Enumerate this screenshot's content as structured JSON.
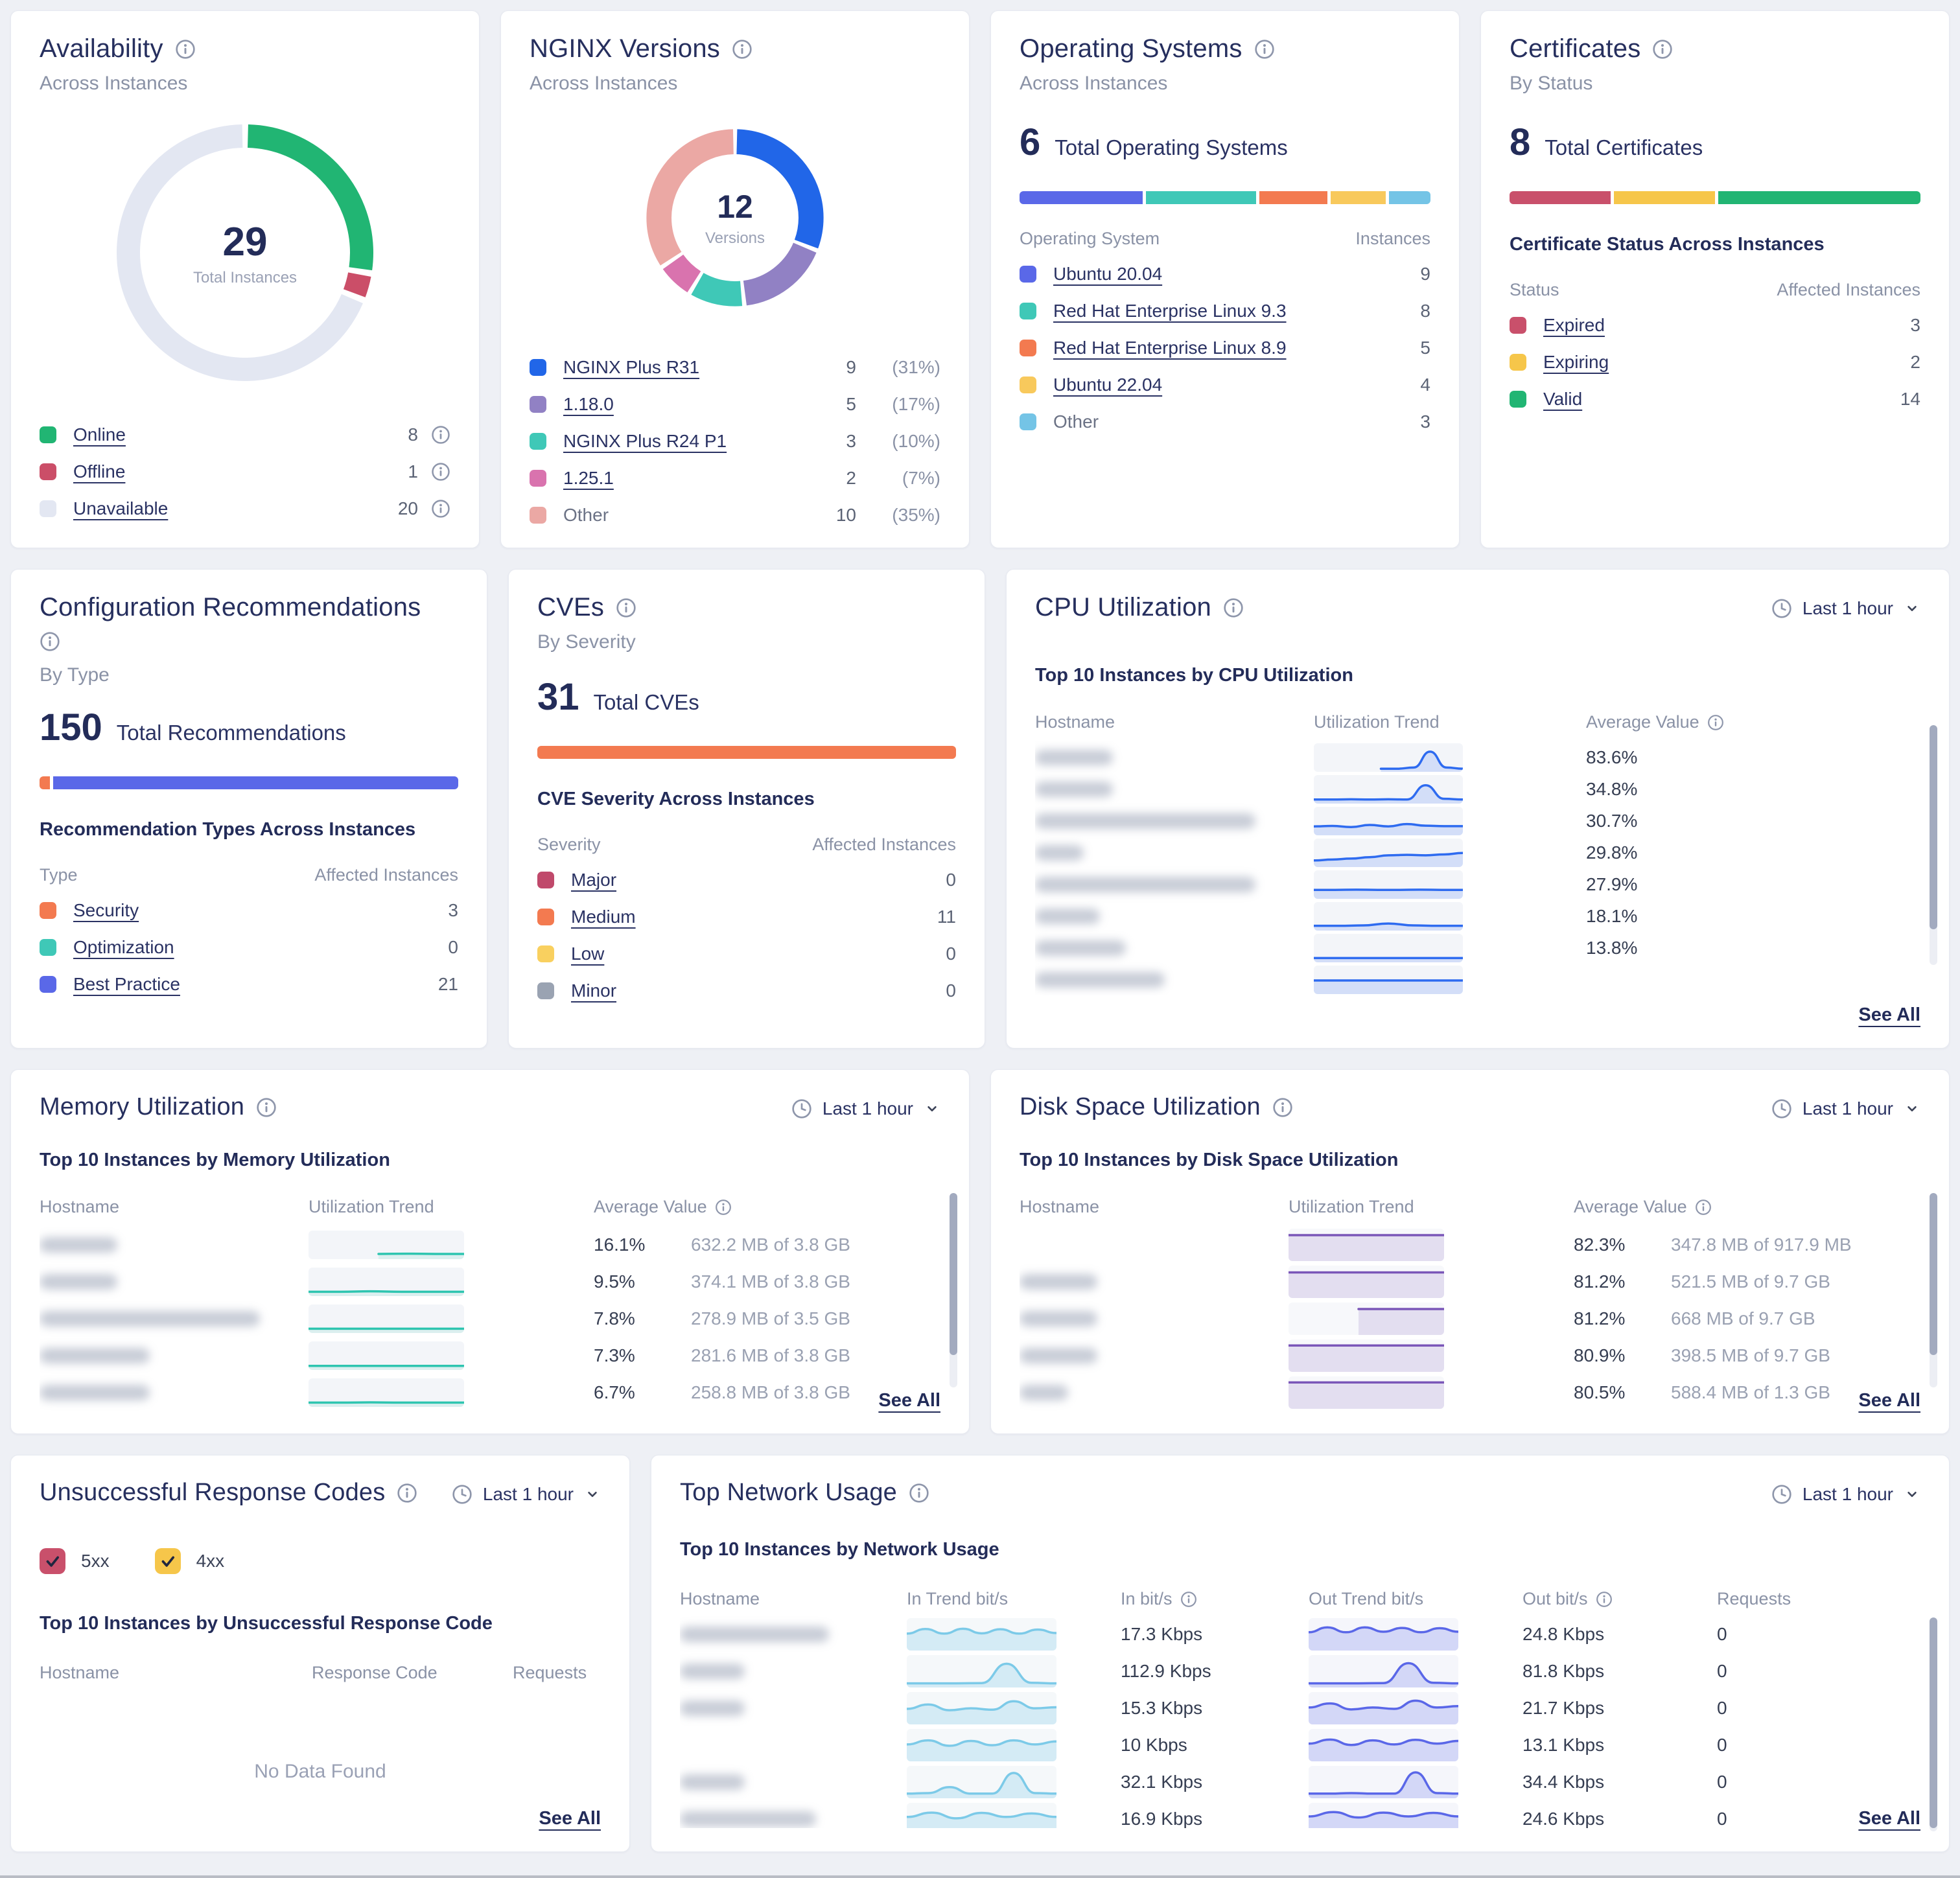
{
  "ui": {
    "see_all": "See All",
    "time_range": "Last 1 hour",
    "empty": "No Data Found"
  },
  "chart_data": [
    {
      "type": "pie",
      "title": "Availability Across Instances",
      "center_value": "29",
      "center_label": "Total Instances",
      "categories": [
        "Online",
        "Offline",
        "Unavailable"
      ],
      "values": [
        8,
        1,
        20
      ],
      "colors": [
        "#21b573",
        "#cb4e68",
        "#e3e7f2"
      ]
    },
    {
      "type": "pie",
      "title": "NGINX Versions Across Instances",
      "center_value": "12",
      "center_label": "Versions",
      "categories": [
        "NGINX Plus R31",
        "1.18.0",
        "NGINX Plus R24 P1",
        "1.25.1",
        "Other"
      ],
      "values": [
        9,
        5,
        3,
        2,
        10
      ],
      "colors": [
        "#2166e8",
        "#9181c4",
        "#3fc8b7",
        "#d973ae",
        "#eba8a4"
      ]
    },
    {
      "type": "bar",
      "title": "Operating Systems",
      "categories": [
        "Ubuntu 20.04",
        "Red Hat Enterprise Linux 9.3",
        "Red Hat Enterprise Linux 8.9",
        "Ubuntu 22.04",
        "Other"
      ],
      "values": [
        9,
        8,
        5,
        4,
        3
      ]
    },
    {
      "type": "bar",
      "title": "Certificates By Status",
      "categories": [
        "Expired",
        "Expiring",
        "Valid"
      ],
      "values": [
        3,
        2,
        14
      ]
    },
    {
      "type": "bar",
      "title": "Configuration Recommendations By Type",
      "categories": [
        "Security",
        "Optimization",
        "Best Practice"
      ],
      "values": [
        3,
        0,
        21
      ]
    },
    {
      "type": "bar",
      "title": "CVEs By Severity",
      "categories": [
        "Major",
        "Medium",
        "Low",
        "Minor"
      ],
      "values": [
        0,
        11,
        0,
        0
      ]
    }
  ],
  "availability": {
    "title": "Availability",
    "subtitle": "Across Instances",
    "center": {
      "value": "29",
      "label": "Total Instances"
    },
    "segments": [
      {
        "label": "Online",
        "count": "8",
        "value": 8,
        "color": "#21b573",
        "link": true
      },
      {
        "label": "Offline",
        "count": "1",
        "value": 1,
        "color": "#cb4e68",
        "link": true
      },
      {
        "label": "Unavailable",
        "count": "20",
        "value": 20,
        "color": "#e3e7f2",
        "link": true
      }
    ]
  },
  "nginx": {
    "title": "NGINX Versions",
    "subtitle": "Across Instances",
    "center": {
      "value": "12",
      "label": "Versions"
    },
    "segments": [
      {
        "label": "NGINX Plus R31",
        "count": "9",
        "pct": "(31%)",
        "value": 9,
        "color": "#2166e8",
        "link": true
      },
      {
        "label": "1.18.0",
        "count": "5",
        "pct": "(17%)",
        "value": 5,
        "color": "#9181c4",
        "link": true
      },
      {
        "label": "NGINX Plus R24 P1",
        "count": "3",
        "pct": "(10%)",
        "value": 3,
        "color": "#3fc8b7",
        "link": true
      },
      {
        "label": "1.25.1",
        "count": "2",
        "pct": "(7%)",
        "value": 2,
        "color": "#d973ae",
        "link": true
      },
      {
        "label": "Other",
        "count": "10",
        "pct": "(35%)",
        "value": 10,
        "color": "#eba8a4",
        "link": false
      }
    ]
  },
  "os": {
    "title": "Operating Systems",
    "subtitle": "Across Instances",
    "total": "6",
    "total_label": "Total Operating Systems",
    "bar": [
      {
        "pct": 31,
        "color": "#5a68e8"
      },
      {
        "pct": 27.6,
        "color": "#3fc8b7"
      },
      {
        "pct": 17.2,
        "color": "#f37a50"
      },
      {
        "pct": 13.8,
        "color": "#f8c95c"
      },
      {
        "pct": 10.4,
        "color": "#74c4e6"
      }
    ],
    "headers": [
      "Operating System",
      "Instances"
    ],
    "rows": [
      {
        "label": "Ubuntu 20.04",
        "count": "9",
        "color": "#5a68e8",
        "link": true
      },
      {
        "label": "Red Hat Enterprise Linux 9.3",
        "count": "8",
        "color": "#3fc8b7",
        "link": true
      },
      {
        "label": "Red Hat Enterprise Linux 8.9",
        "count": "5",
        "color": "#f37a50",
        "link": true
      },
      {
        "label": "Ubuntu 22.04",
        "count": "4",
        "color": "#f8c95c",
        "link": true
      },
      {
        "label": "Other",
        "count": "3",
        "color": "#74c4e6",
        "link": false
      }
    ]
  },
  "certs": {
    "title": "Certificates",
    "subtitle": "By Status",
    "total": "8",
    "total_label": "Total Certificates",
    "bar": [
      {
        "pct": 25,
        "color": "#c9506b"
      },
      {
        "pct": 25,
        "color": "#f6c64a"
      },
      {
        "pct": 50,
        "color": "#21b573"
      }
    ],
    "section": "Certificate Status Across Instances",
    "headers": [
      "Status",
      "Affected Instances"
    ],
    "rows": [
      {
        "label": "Expired",
        "count": "3",
        "color": "#c9506b",
        "link": true
      },
      {
        "label": "Expiring",
        "count": "2",
        "color": "#f6c64a",
        "link": true
      },
      {
        "label": "Valid",
        "count": "14",
        "color": "#21b573",
        "link": true
      }
    ]
  },
  "config": {
    "title": "Configuration Recommendations",
    "subtitle": "By Type",
    "total": "150",
    "total_label": "Total Recommendations",
    "bar": [
      {
        "pct": 2.5,
        "color": "#f37a50"
      },
      {
        "pct": 97.5,
        "color": "#5a68e8"
      }
    ],
    "section": "Recommendation Types Across Instances",
    "headers": [
      "Type",
      "Affected Instances"
    ],
    "rows": [
      {
        "label": "Security",
        "count": "3",
        "color": "#f37a50",
        "link": true
      },
      {
        "label": "Optimization",
        "count": "0",
        "color": "#3fc8b7",
        "link": true
      },
      {
        "label": "Best Practice",
        "count": "21",
        "color": "#5a68e8",
        "link": true
      }
    ]
  },
  "cves": {
    "title": "CVEs",
    "subtitle": "By Severity",
    "total": "31",
    "total_label": "Total CVEs",
    "bar": [
      {
        "pct": 100,
        "color": "#f37a50"
      }
    ],
    "section": "CVE Severity Across Instances",
    "headers": [
      "Severity",
      "Affected Instances"
    ],
    "rows": [
      {
        "label": "Major",
        "count": "0",
        "color": "#c0496b",
        "link": true
      },
      {
        "label": "Medium",
        "count": "11",
        "color": "#f37a50",
        "link": true
      },
      {
        "label": "Low",
        "count": "0",
        "color": "#f9d05f",
        "link": true
      },
      {
        "label": "Minor",
        "count": "0",
        "color": "#9aa3b2",
        "link": true
      }
    ]
  },
  "cpu": {
    "title": "CPU Utilization",
    "section": "Top 10 Instances by CPU Utilization",
    "headers": {
      "host": "Hostname",
      "trend": "Utilization Trend",
      "value": "Average Value"
    },
    "rows": [
      {
        "host_w": 120,
        "value": "83.6%",
        "trend": {
          "start": 0.45,
          "v": [
            0.05,
            0.05,
            0.1,
            0.78,
            0.1,
            0.05
          ]
        }
      },
      {
        "host_w": 120,
        "value": "34.8%",
        "trend": {
          "v": [
            0.09,
            0.09,
            0.1,
            0.09,
            0.1,
            0.09,
            0.7,
            0.12,
            0.09
          ]
        }
      },
      {
        "host_w": 340,
        "value": "30.7%",
        "trend": {
          "v": [
            0.3,
            0.32,
            0.27,
            0.36,
            0.3,
            0.4,
            0.33,
            0.31,
            0.31
          ]
        }
      },
      {
        "host_w": 75,
        "value": "29.8%",
        "trend": {
          "v": [
            0.2,
            0.24,
            0.28,
            0.34,
            0.42,
            0.44,
            0.42,
            0.46,
            0.52
          ]
        }
      },
      {
        "host_w": 340,
        "value": "27.9%",
        "trend": {
          "v": [
            0.3,
            0.3,
            0.31,
            0.3,
            0.3,
            0.31,
            0.3,
            0.3
          ]
        }
      },
      {
        "host_w": 100,
        "value": "18.1%",
        "trend": {
          "v": [
            0.12,
            0.12,
            0.14,
            0.22,
            0.14,
            0.12,
            0.12
          ]
        }
      },
      {
        "host_w": 140,
        "value": "13.8%",
        "trend": {
          "v": [
            0.1,
            0.1,
            0.1,
            0.1,
            0.1,
            0.1
          ]
        }
      },
      {
        "host_w": 200,
        "value": "",
        "trend": {
          "v": [
            0.5,
            0.5,
            0.5,
            0.5
          ]
        }
      }
    ]
  },
  "memory": {
    "title": "Memory Utilization",
    "section": "Top 10 Instances by Memory Utilization",
    "headers": {
      "host": "Hostname",
      "trend": "Utilization Trend",
      "value": "Average Value"
    },
    "rows": [
      {
        "host_w": 120,
        "value": "16.1%",
        "detail": "632.2 MB of 3.8 GB",
        "trend": {
          "start": 0.45,
          "v": [
            0.14,
            0.15,
            0.14,
            0.14
          ]
        }
      },
      {
        "host_w": 120,
        "value": "9.5%",
        "detail": "374.1 MB of 3.8 GB",
        "trend": {
          "v": [
            0.1,
            0.1,
            0.12,
            0.1,
            0.1,
            0.1
          ]
        }
      },
      {
        "host_w": 340,
        "value": "7.8%",
        "detail": "278.9 MB of 3.5 GB",
        "trend": {
          "v": [
            0.1,
            0.1,
            0.1,
            0.1,
            0.1,
            0.1
          ]
        }
      },
      {
        "host_w": 170,
        "value": "7.3%",
        "detail": "281.6 MB of 3.8 GB",
        "trend": {
          "v": [
            0.09,
            0.09,
            0.09,
            0.09,
            0.09,
            0.09
          ]
        }
      },
      {
        "host_w": 170,
        "value": "6.7%",
        "detail": "258.8 MB of 3.8 GB",
        "trend": {
          "v": [
            0.1,
            0.1,
            0.11,
            0.1,
            0.1,
            0.1
          ]
        }
      }
    ]
  },
  "disk": {
    "title": "Disk Space Utilization",
    "section": "Top 10 Instances by Disk Space Utilization",
    "headers": {
      "host": "Hostname",
      "trend": "Utilization Trend",
      "value": "Average Value"
    },
    "rows": [
      {
        "host_w": 0,
        "value": "82.3%",
        "detail": "347.8 MB of 917.9 MB",
        "trend": {
          "v": [
            0.88,
            0.88,
            0.88,
            0.88,
            0.88
          ]
        }
      },
      {
        "host_w": 120,
        "value": "81.2%",
        "detail": "521.5 MB of 9.7 GB",
        "trend": {
          "v": [
            0.87,
            0.87,
            0.87,
            0.87,
            0.87
          ]
        }
      },
      {
        "host_w": 120,
        "value": "81.2%",
        "detail": "668 MB of 9.7 GB",
        "trend": {
          "start": 0.45,
          "v": [
            0.88,
            0.88,
            0.88
          ]
        }
      },
      {
        "host_w": 120,
        "value": "80.9%",
        "detail": "398.5 MB of 9.7 GB",
        "trend": {
          "v": [
            0.9,
            0.9,
            0.9,
            0.9,
            0.9
          ]
        }
      },
      {
        "host_w": 75,
        "value": "80.5%",
        "detail": "588.4 MB of 1.3 GB",
        "trend": {
          "v": [
            0.9,
            0.9,
            0.9,
            0.9,
            0.9
          ]
        }
      }
    ]
  },
  "responses": {
    "title": "Unsuccessful Response Codes",
    "filters": [
      {
        "label": "5xx",
        "color": "#c9506b",
        "checked": true
      },
      {
        "label": "4xx",
        "color": "#f6c64a",
        "checked": true
      }
    ],
    "section": "Top 10 Instances by Unsuccessful Response Code",
    "headers": [
      "Hostname",
      "Response Code",
      "Requests"
    ],
    "empty": "No Data Found"
  },
  "network": {
    "title": "Top Network Usage",
    "section": "Top 10 Instances by Network Usage",
    "headers": [
      "Hostname",
      "In Trend bit/s",
      "In bit/s",
      "Out Trend bit/s",
      "Out bit/s",
      "Requests"
    ],
    "rows": [
      {
        "host_w": 230,
        "in": "17.3 Kbps",
        "out": "24.8 Kbps",
        "req": "0",
        "tin": {
          "v": [
            0.55,
            0.72,
            0.55,
            0.73,
            0.56,
            0.71,
            0.55,
            0.7,
            0.57
          ]
        },
        "tout": {
          "v": [
            0.6,
            0.78,
            0.6,
            0.78,
            0.62,
            0.76,
            0.6,
            0.75,
            0.62
          ]
        }
      },
      {
        "host_w": 100,
        "in": "112.9 Kbps",
        "out": "81.8 Kbps",
        "req": "0",
        "tin": {
          "v": [
            0.08,
            0.08,
            0.08,
            0.09,
            0.8,
            0.1,
            0.08
          ]
        },
        "tout": {
          "v": [
            0.08,
            0.08,
            0.08,
            0.09,
            0.82,
            0.1,
            0.08
          ]
        }
      },
      {
        "host_w": 100,
        "in": "15.3 Kbps",
        "out": "21.7 Kbps",
        "req": "0",
        "tin": {
          "v": [
            0.5,
            0.66,
            0.45,
            0.52,
            0.47,
            0.78,
            0.52,
            0.56
          ]
        },
        "tout": {
          "v": [
            0.55,
            0.7,
            0.48,
            0.55,
            0.5,
            0.8,
            0.55,
            0.6
          ]
        }
      },
      {
        "host_w": 0,
        "in": "10 Kbps",
        "out": "13.1 Kbps",
        "req": "0",
        "tin": {
          "v": [
            0.55,
            0.7,
            0.5,
            0.68,
            0.52,
            0.7,
            0.55,
            0.66
          ]
        },
        "tout": {
          "v": [
            0.58,
            0.73,
            0.53,
            0.7,
            0.55,
            0.72,
            0.58,
            0.68
          ]
        }
      },
      {
        "host_w": 100,
        "in": "32.1 Kbps",
        "out": "34.4 Kbps",
        "req": "0",
        "tin": {
          "v": [
            0.1,
            0.12,
            0.34,
            0.1,
            0.1,
            0.86,
            0.12,
            0.1
          ]
        },
        "tout": {
          "v": [
            0.1,
            0.1,
            0.12,
            0.1,
            0.1,
            0.88,
            0.12,
            0.1
          ]
        }
      },
      {
        "host_w": 210,
        "in": "16.9 Kbps",
        "out": "24.6 Kbps",
        "req": "0",
        "tin": {
          "v": [
            0.6,
            0.76,
            0.55,
            0.75,
            0.6,
            0.73,
            0.6
          ]
        },
        "tout": {
          "v": [
            0.62,
            0.78,
            0.58,
            0.76,
            0.62,
            0.75,
            0.62
          ]
        }
      }
    ]
  }
}
